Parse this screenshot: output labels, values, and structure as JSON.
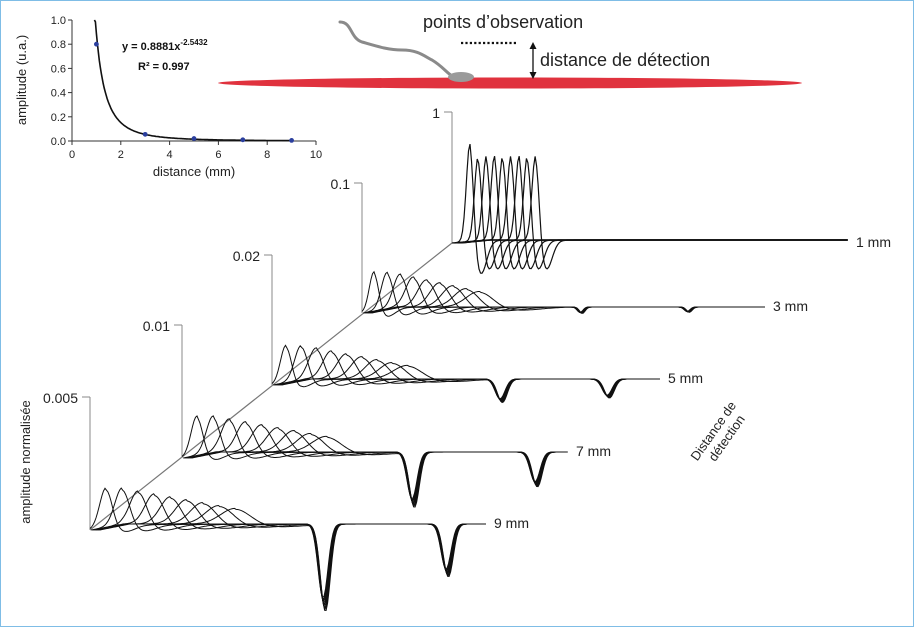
{
  "chart_data": [
    {
      "type": "scatter",
      "xlabel": "distance (mm)",
      "ylabel": "amplitude (u.a.)",
      "xlim": [
        0,
        10
      ],
      "ylim": [
        0,
        1.0
      ],
      "xticks": [
        "0",
        "2",
        "4",
        "6",
        "8",
        "10"
      ],
      "yticks": [
        "0.0",
        "0.2",
        "0.4",
        "0.6",
        "0.8",
        "1.0"
      ],
      "points": [
        {
          "x": 1,
          "y": 0.8
        },
        {
          "x": 3,
          "y": 0.055
        },
        {
          "x": 5,
          "y": 0.02
        },
        {
          "x": 7,
          "y": 0.01
        },
        {
          "x": 9,
          "y": 0.005
        }
      ],
      "fit": {
        "a": 0.8881,
        "b": -2.5432,
        "equation": "y = 0.8881x",
        "exponent": "-2.5432",
        "r2_label": "R² = 0.997"
      },
      "grid": false,
      "legend": "none"
    },
    {
      "type": "line",
      "ylabel": "amplitude normalisée",
      "depth_label_line1": "Distance de",
      "depth_label_line2": "détection",
      "traces_per_group": 9,
      "series": [
        {
          "name": "1 mm",
          "scale_label": "1"
        },
        {
          "name": "3 mm",
          "scale_label": "0.1"
        },
        {
          "name": "5 mm",
          "scale_label": "0.02"
        },
        {
          "name": "7 mm",
          "scale_label": "0.01"
        },
        {
          "name": "9 mm",
          "scale_label": "0.005"
        }
      ]
    }
  ],
  "schematic": {
    "observation_label": "points d’observation",
    "distance_label": "distance de détection",
    "colors": {
      "fiber": "#e0323e",
      "cell": "#9a9a9a"
    }
  }
}
